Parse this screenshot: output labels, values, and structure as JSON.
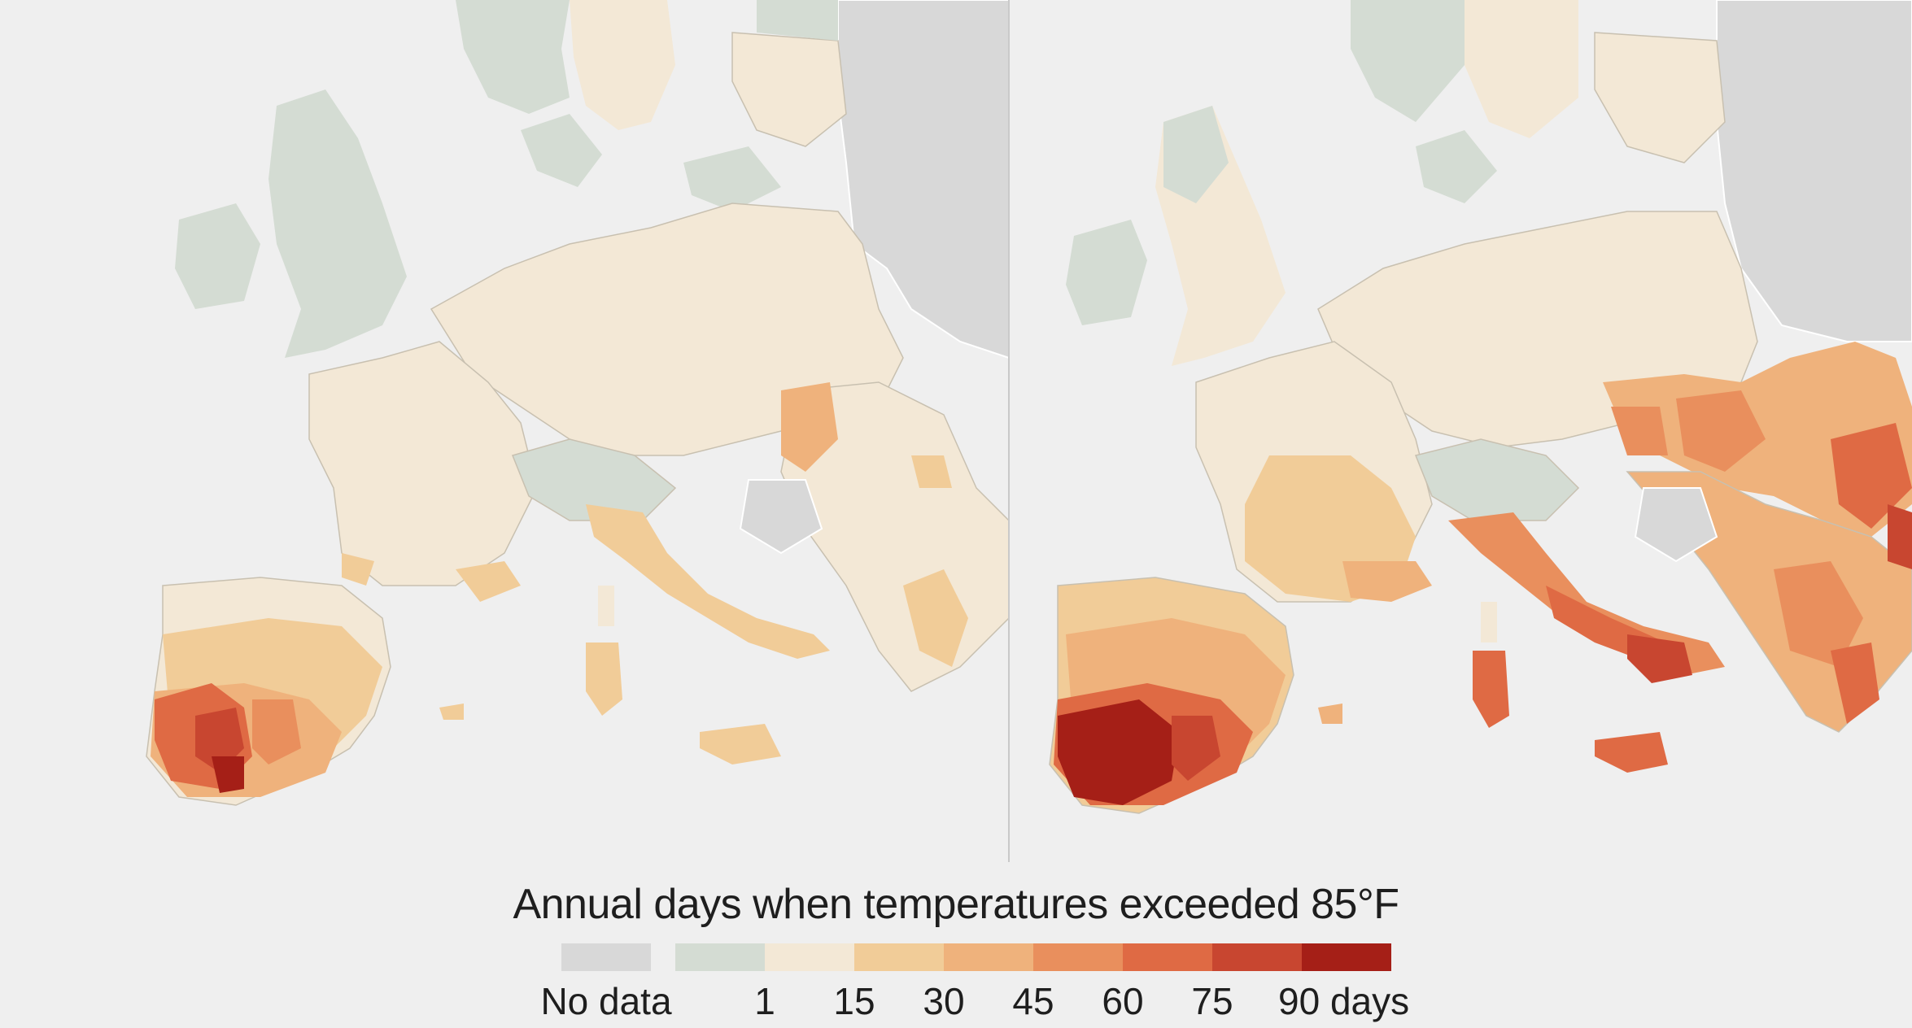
{
  "map": {
    "panels": [
      "left",
      "right"
    ],
    "projection": "Europe",
    "legend": {
      "title": "Annual days when temperatures exceeded 85°F",
      "bins": [
        {
          "label": "No data",
          "color": "#d8d8d8"
        },
        {
          "label": "",
          "color": "#d4dcd3"
        },
        {
          "label": "1",
          "color": "#f3e8d6"
        },
        {
          "label": "15",
          "color": "#f1cc98"
        },
        {
          "label": "30",
          "color": "#efb27c"
        },
        {
          "label": "45",
          "color": "#e98f5d"
        },
        {
          "label": "60",
          "color": "#df6a44"
        },
        {
          "label": "75",
          "color": "#c84630"
        },
        {
          "label": "90 days",
          "color": "#a51f17"
        }
      ]
    }
  }
}
